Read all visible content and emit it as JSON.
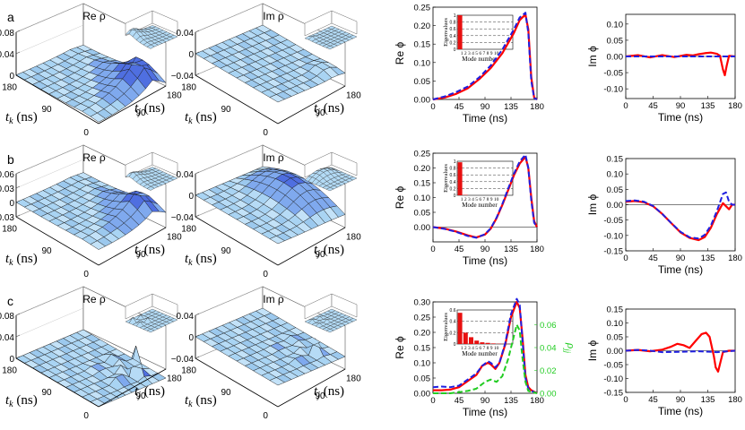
{
  "rows": [
    {
      "letter": "a",
      "surf": [
        {
          "title": "Re ρ",
          "zticks": [
            "0.08",
            "0.04",
            "0"
          ],
          "zvals": [
            0.08,
            0.04,
            0
          ],
          "ymin": 0,
          "ymax": 0.08,
          "kind": "peak",
          "amp": 1.0,
          "axis_k": [
            "180",
            "90",
            "0"
          ],
          "axis_j": [
            "90",
            "180"
          ],
          "xlabel_k": "t",
          "xlabel_k_sub": "k",
          "xlabel_j": "t",
          "xlabel_j_sub": "j",
          "unit": "(ns)"
        },
        {
          "title": "Im ρ",
          "zticks": [
            "0.04",
            "0",
            "−0.04"
          ],
          "zvals": [
            0.04,
            0,
            -0.04
          ],
          "ymin": -0.04,
          "ymax": 0.04,
          "kind": "flat",
          "amp": 0.15,
          "axis_k": [
            "180",
            "90",
            "0"
          ],
          "axis_j": [
            "90",
            "180"
          ],
          "xlabel_k": "t",
          "xlabel_k_sub": "k",
          "xlabel_j": "t",
          "xlabel_j_sub": "j",
          "unit": "(ns)"
        }
      ]
    },
    {
      "letter": "b",
      "surf": [
        {
          "title": "Re ρ",
          "zticks": [
            "0.06",
            "0.03",
            "0",
            "−0.03"
          ],
          "zvals": [
            0.06,
            0.03,
            0,
            -0.03
          ],
          "ymin": -0.03,
          "ymax": 0.06,
          "kind": "peak",
          "amp": 0.8,
          "axis_k": [
            "180",
            "90",
            "0"
          ],
          "axis_j": [
            "90",
            "180"
          ],
          "xlabel_k": "t",
          "xlabel_k_sub": "k",
          "xlabel_j": "t",
          "xlabel_j_sub": "j",
          "unit": "(ns)"
        },
        {
          "title": "Im ρ",
          "zticks": [
            "0.04",
            "0",
            "−0.04"
          ],
          "zvals": [
            0.04,
            0,
            -0.04
          ],
          "ymin": -0.04,
          "ymax": 0.04,
          "kind": "wave",
          "amp": 0.6,
          "axis_k": [
            "180",
            "90",
            "0"
          ],
          "axis_j": [
            "90",
            "180"
          ],
          "xlabel_k": "t",
          "xlabel_k_sub": "k",
          "xlabel_j": "t",
          "xlabel_j_sub": "j",
          "unit": "(ns)"
        }
      ]
    },
    {
      "letter": "c",
      "surf": [
        {
          "title": "Re ρ",
          "zticks": [
            "0.08",
            "0.04",
            "0"
          ],
          "zvals": [
            0.08,
            0.04,
            0
          ],
          "ymin": 0,
          "ymax": 0.08,
          "kind": "spikes",
          "amp": 1.0,
          "axis_k": [
            "180",
            "90",
            "0"
          ],
          "axis_j": [
            "90",
            "180"
          ],
          "xlabel_k": "t",
          "xlabel_k_sub": "k",
          "xlabel_j": "t",
          "xlabel_j_sub": "j",
          "unit": "(ns)"
        },
        {
          "title": "Im ρ",
          "zticks": [
            "0.04",
            "0",
            "−0.04"
          ],
          "zvals": [
            0.04,
            0,
            -0.04
          ],
          "ymin": -0.04,
          "ymax": 0.04,
          "kind": "spikes",
          "amp": 0.5,
          "axis_k": [
            "180",
            "90",
            "0"
          ],
          "axis_j": [
            "90",
            "180"
          ],
          "xlabel_k": "t",
          "xlabel_k_sub": "k",
          "xlabel_j": "t",
          "xlabel_j_sub": "j",
          "unit": "(ns)"
        }
      ]
    }
  ],
  "chart_data": [
    {
      "type": "line",
      "panel": "a-re-phi",
      "xlabel": "Time (ns)",
      "ylabel": "Re ϕ",
      "xlim": [
        0,
        180
      ],
      "ylim": [
        0,
        0.25
      ],
      "xticks": [
        0,
        45,
        90,
        135,
        180
      ],
      "yticks": [
        0,
        0.05,
        0.1,
        0.15,
        0.2,
        0.25
      ],
      "series": [
        {
          "color": "#ff0000",
          "dash": false,
          "x": [
            0,
            20,
            40,
            60,
            80,
            100,
            120,
            140,
            150,
            160,
            165,
            170,
            175,
            180
          ],
          "y": [
            0,
            0.005,
            0.015,
            0.03,
            0.055,
            0.085,
            0.125,
            0.18,
            0.215,
            0.23,
            0.19,
            0.06,
            0.005,
            0
          ]
        },
        {
          "color": "#2020e0",
          "dash": true,
          "x": [
            0,
            20,
            40,
            60,
            80,
            100,
            120,
            140,
            150,
            160,
            165,
            170,
            175,
            180
          ],
          "y": [
            0,
            0.008,
            0.02,
            0.035,
            0.06,
            0.092,
            0.135,
            0.19,
            0.222,
            0.235,
            0.18,
            0.05,
            0.004,
            0
          ]
        }
      ],
      "inset": {
        "ylabel": "Eigenvalues",
        "xlabel": "Mode number",
        "yticks": [
          "1",
          "0.8",
          "0.6",
          "0.4",
          "0.2",
          "0"
        ],
        "yvals": [
          1,
          0.8,
          0.6,
          0.4,
          0.2,
          0
        ],
        "bars": [
          1.0,
          0,
          0,
          0,
          0,
          0,
          0,
          0,
          0,
          0
        ],
        "xticks": "1 2 3 4 5 6 7 8 9 10"
      }
    },
    {
      "type": "line",
      "panel": "a-im-phi",
      "xlabel": "Time (ns)",
      "ylabel": "Im ϕ",
      "xlim": [
        0,
        180
      ],
      "ylim": [
        -0.13,
        0.13
      ],
      "xticks": [
        0,
        45,
        90,
        135,
        180
      ],
      "yticks": [
        -0.1,
        -0.05,
        0,
        0.05,
        0.1
      ],
      "series": [
        {
          "color": "#ff0000",
          "dash": false,
          "x": [
            0,
            20,
            40,
            60,
            80,
            100,
            110,
            120,
            130,
            140,
            150,
            155,
            160,
            163,
            166,
            170,
            180
          ],
          "y": [
            0,
            0.004,
            -0.003,
            0.004,
            -0.002,
            0.005,
            0.003,
            0.007,
            0.01,
            0.012,
            0.008,
            0.002,
            -0.04,
            -0.058,
            -0.03,
            0.002,
            0
          ]
        },
        {
          "color": "#2020e0",
          "dash": true,
          "x": [
            0,
            45,
            90,
            135,
            180
          ],
          "y": [
            0,
            0,
            0,
            0,
            0
          ]
        }
      ]
    },
    {
      "type": "line",
      "panel": "b-re-phi",
      "xlabel": "Time (ns)",
      "ylabel": "Re ϕ",
      "xlim": [
        0,
        180
      ],
      "ylim": [
        -0.05,
        0.25
      ],
      "xticks": [
        0,
        45,
        90,
        135,
        180
      ],
      "yticks": [
        0,
        0.05,
        0.1,
        0.15,
        0.2,
        0.25
      ],
      "series": [
        {
          "color": "#ff0000",
          "dash": false,
          "x": [
            0,
            20,
            40,
            60,
            75,
            90,
            100,
            110,
            120,
            130,
            140,
            150,
            160,
            165,
            170,
            175,
            180
          ],
          "y": [
            0,
            -0.005,
            -0.015,
            -0.028,
            -0.035,
            -0.025,
            -0.005,
            0.03,
            0.075,
            0.125,
            0.175,
            0.215,
            0.238,
            0.2,
            0.1,
            0.02,
            0
          ]
        },
        {
          "color": "#2020e0",
          "dash": true,
          "x": [
            0,
            20,
            40,
            60,
            75,
            90,
            100,
            110,
            120,
            130,
            140,
            150,
            160,
            165,
            170,
            175,
            180
          ],
          "y": [
            0,
            -0.006,
            -0.016,
            -0.03,
            -0.036,
            -0.024,
            -0.004,
            0.032,
            0.078,
            0.13,
            0.18,
            0.222,
            0.245,
            0.2,
            0.09,
            0.015,
            0
          ]
        }
      ],
      "inset": {
        "ylabel": "Eigenvalues",
        "xlabel": "Mode number",
        "yticks": [
          "1",
          "0.8",
          "0.6",
          "0.4",
          "0.2",
          "0"
        ],
        "yvals": [
          1,
          0.8,
          0.6,
          0.4,
          0.2,
          0
        ],
        "bars": [
          0.97,
          0.01,
          0,
          0,
          0,
          0,
          0,
          0,
          0,
          0
        ],
        "xticks": "1 2 3 4 5 6 7 8 9 10"
      }
    },
    {
      "type": "line",
      "panel": "b-im-phi",
      "xlabel": "Time (ns)",
      "ylabel": "Im ϕ",
      "xlim": [
        0,
        180
      ],
      "ylim": [
        -0.15,
        0.15
      ],
      "xticks": [
        0,
        45,
        90,
        135,
        180
      ],
      "yticks": [
        -0.15,
        -0.1,
        -0.05,
        0,
        0.05,
        0.1,
        0.15
      ],
      "series": [
        {
          "color": "#ff0000",
          "dash": false,
          "x": [
            0,
            15,
            30,
            45,
            60,
            75,
            90,
            105,
            120,
            130,
            140,
            150,
            160,
            165,
            170,
            175,
            180
          ],
          "y": [
            0.01,
            0.012,
            0.008,
            -0.005,
            -0.03,
            -0.06,
            -0.09,
            -0.108,
            -0.115,
            -0.105,
            -0.075,
            -0.03,
            0.005,
            -0.005,
            -0.015,
            0,
            0
          ]
        },
        {
          "color": "#2020e0",
          "dash": true,
          "x": [
            0,
            15,
            30,
            45,
            60,
            75,
            90,
            105,
            120,
            130,
            140,
            150,
            160,
            165,
            170,
            175,
            180
          ],
          "y": [
            0.012,
            0.014,
            0.01,
            -0.004,
            -0.03,
            -0.06,
            -0.088,
            -0.106,
            -0.11,
            -0.098,
            -0.068,
            -0.02,
            0.035,
            0.04,
            0.01,
            0,
            0
          ]
        }
      ]
    },
    {
      "type": "line",
      "panel": "c-re-phi",
      "xlabel": "Time (ns)",
      "ylabel": "Re ϕ",
      "xlim": [
        0,
        180
      ],
      "ylim": [
        0,
        0.3
      ],
      "xticks": [
        0,
        45,
        90,
        135,
        180
      ],
      "yticks": [
        0,
        0.05,
        0.1,
        0.15,
        0.2,
        0.25,
        0.3
      ],
      "right_axis": {
        "label": "ρ",
        "label_sub": "jj",
        "ylim": [
          0,
          0.08
        ],
        "yticks": [
          0,
          0.02,
          0.04,
          0.06
        ],
        "color": "#22cc22"
      },
      "series": [
        {
          "color": "#ff0000",
          "dash": false,
          "x": [
            0,
            15,
            30,
            45,
            60,
            75,
            85,
            95,
            100,
            108,
            115,
            125,
            135,
            145,
            150,
            155,
            160,
            165,
            170,
            180
          ],
          "y": [
            0.01,
            0.01,
            0.012,
            0.02,
            0.04,
            0.06,
            0.09,
            0.1,
            0.095,
            0.08,
            0.1,
            0.16,
            0.25,
            0.3,
            0.28,
            0.18,
            0.06,
            0.02,
            0.01,
            0
          ]
        },
        {
          "color": "#2020e0",
          "dash": true,
          "x": [
            0,
            15,
            30,
            45,
            60,
            75,
            85,
            95,
            100,
            108,
            115,
            125,
            135,
            145,
            150,
            155,
            160,
            165,
            170,
            180
          ],
          "y": [
            0.02,
            0.022,
            0.02,
            0.025,
            0.045,
            0.065,
            0.09,
            0.105,
            0.1,
            0.085,
            0.1,
            0.165,
            0.26,
            0.31,
            0.29,
            0.17,
            0.05,
            0.015,
            0.008,
            0
          ]
        },
        {
          "color": "#22cc22",
          "dash": true,
          "axis": "right",
          "x": [
            0,
            30,
            60,
            75,
            90,
            100,
            110,
            120,
            130,
            140,
            145,
            150,
            155,
            160,
            165,
            180
          ],
          "y": [
            0,
            0,
            0.002,
            0.004,
            0.01,
            0.012,
            0.01,
            0.015,
            0.03,
            0.05,
            0.06,
            0.055,
            0.03,
            0.01,
            0.002,
            0
          ]
        }
      ],
      "inset": {
        "ylabel": "Eigenvalues",
        "xlabel": "Mode number",
        "yticks": [
          "0.6",
          "0.4",
          "0.2",
          "0"
        ],
        "yvals": [
          0.6,
          0.4,
          0.2,
          0
        ],
        "bars": [
          0.55,
          0.2,
          0.12,
          0.06,
          0.03,
          0.02,
          0.01,
          0.005,
          0.004,
          0.003
        ],
        "xticks": "1 2 3 4 5 6 7 8 9 10"
      }
    },
    {
      "type": "line",
      "panel": "c-im-phi",
      "xlabel": "Time (ns)",
      "ylabel": "Im ϕ",
      "xlim": [
        0,
        180
      ],
      "ylim": [
        -0.15,
        0.15
      ],
      "xticks": [
        0,
        45,
        90,
        135,
        180
      ],
      "yticks": [
        -0.15,
        -0.1,
        -0.05,
        0,
        0.05,
        0.1,
        0.15
      ],
      "series": [
        {
          "color": "#ff0000",
          "dash": false,
          "x": [
            0,
            20,
            40,
            60,
            75,
            85,
            95,
            105,
            115,
            125,
            132,
            138,
            145,
            148,
            152,
            156,
            160,
            170,
            180
          ],
          "y": [
            0,
            0.003,
            -0.002,
            0.004,
            0.015,
            0.025,
            0.02,
            0.01,
            0.035,
            0.06,
            0.065,
            0.05,
            -0.02,
            -0.06,
            -0.075,
            -0.04,
            -0.005,
            0,
            0
          ]
        },
        {
          "color": "#2020e0",
          "dash": true,
          "x": [
            0,
            20,
            40,
            60,
            90,
            120,
            150,
            180
          ],
          "y": [
            0,
            0.003,
            0.0,
            -0.005,
            -0.004,
            -0.002,
            -0.005,
            0
          ]
        }
      ]
    }
  ]
}
